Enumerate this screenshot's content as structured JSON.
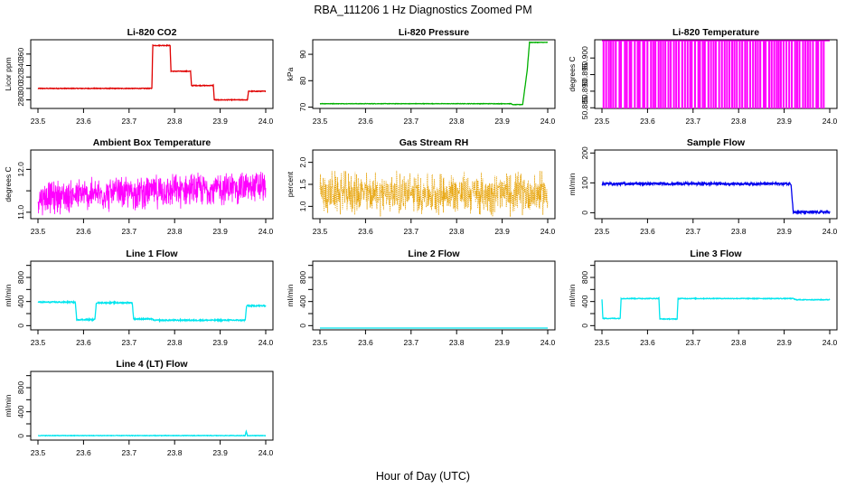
{
  "title": "RBA_111206  1 Hz Diagnostics Zoomed PM",
  "xlabel": "Hour of Day (UTC)",
  "chart_data": [
    {
      "type": "line",
      "title": "Li-820 CO2",
      "ylabel": "Licor ppm",
      "color": "#e00000",
      "xlim": [
        23.5,
        24.0
      ],
      "ylim": [
        265,
        385
      ],
      "x_ticks": [
        "23.5",
        "23.6",
        "23.7",
        "23.8",
        "23.9",
        "24.0"
      ],
      "y_ticks": [
        280,
        300,
        320,
        340,
        360
      ],
      "y_tick_labels": [
        "280",
        "300",
        "320",
        "340",
        "360"
      ],
      "noise": 0.6,
      "series": [
        {
          "x": [
            23.5,
            23.75,
            23.752,
            23.79,
            23.792,
            23.835,
            23.837,
            23.885,
            23.887,
            23.96,
            23.962,
            24.0
          ],
          "y": [
            300,
            300,
            375,
            375,
            330,
            330,
            305,
            305,
            280,
            280,
            295,
            295
          ]
        }
      ]
    },
    {
      "type": "line",
      "title": "Li-820 Pressure",
      "ylabel": "kPa",
      "color": "#00b000",
      "xlim": [
        23.5,
        24.0
      ],
      "ylim": [
        69.5,
        95.5
      ],
      "x_ticks": [
        "23.5",
        "23.6",
        "23.7",
        "23.8",
        "23.9",
        "24.0"
      ],
      "y_ticks": [
        70,
        80,
        90
      ],
      "y_tick_labels": [
        "70",
        "80",
        "90"
      ],
      "noise": 0.08,
      "series": [
        {
          "x": [
            23.5,
            23.92,
            23.923,
            23.945,
            23.955,
            23.96,
            23.963,
            24.0
          ],
          "y": [
            71.3,
            71.3,
            70.9,
            71.0,
            84,
            94.5,
            94.5,
            94.5
          ]
        }
      ]
    },
    {
      "type": "line",
      "title": "Li-820 Temperature",
      "ylabel": "degrees C",
      "color": "#ff00ff",
      "xlim": [
        23.5,
        24.0
      ],
      "ylim": [
        50.8848,
        50.9055
      ],
      "x_ticks": [
        "23.5",
        "23.6",
        "23.7",
        "23.8",
        "23.9",
        "24.0"
      ],
      "y_ticks": [
        50.885,
        50.89,
        50.895,
        50.9
      ],
      "y_tick_labels": [
        "50.885",
        "50.890",
        "50.895",
        "50.900"
      ],
      "pattern": "spikes",
      "baseline": 50.9052,
      "low": 50.885,
      "spike_count": 85,
      "spike_end": 23.99
    },
    {
      "type": "line",
      "title": "Ambient Box Temperature",
      "ylabel": "degrees C",
      "color": "#ff00ff",
      "xlim": [
        23.5,
        24.0
      ],
      "ylim": [
        10.85,
        12.45
      ],
      "x_ticks": [
        "23.5",
        "23.6",
        "23.7",
        "23.8",
        "23.9",
        "24.0"
      ],
      "y_ticks": [
        11.0,
        11.5,
        12.0
      ],
      "y_tick_labels": [
        "11.0",
        "",
        "12.0"
      ],
      "pattern": "noise",
      "mean": [
        11.35,
        11.6
      ],
      "amp": 0.45
    },
    {
      "type": "line",
      "title": "Gas Stream RH",
      "ylabel": "percent",
      "color": "#e6a000",
      "xlim": [
        23.5,
        24.0
      ],
      "ylim": [
        0.72,
        2.28
      ],
      "x_ticks": [
        "23.5",
        "23.6",
        "23.7",
        "23.8",
        "23.9",
        "24.0"
      ],
      "y_ticks": [
        1.0,
        1.5,
        2.0
      ],
      "y_tick_labels": [
        "1.0",
        "1.5",
        "2.0"
      ],
      "pattern": "noise",
      "mean": [
        1.3,
        1.3
      ],
      "amp": 0.55,
      "dotted": true
    },
    {
      "type": "line",
      "title": "Sample Flow",
      "ylabel": "ml/min",
      "color": "#0000ee",
      "xlim": [
        23.5,
        24.0
      ],
      "ylim": [
        -20,
        210
      ],
      "x_ticks": [
        "23.5",
        "23.6",
        "23.7",
        "23.8",
        "23.9",
        "24.0"
      ],
      "y_ticks": [
        0,
        100,
        200
      ],
      "y_tick_labels": [
        "0",
        "100",
        "200"
      ],
      "noise": 4,
      "series": [
        {
          "x": [
            23.5,
            23.915,
            23.92,
            24.0
          ],
          "y": [
            97,
            97,
            2,
            2
          ]
        }
      ]
    },
    {
      "type": "line",
      "title": "Line 1 Flow",
      "ylabel": "ml/min",
      "color": "#00e5ee",
      "xlim": [
        23.5,
        24.0
      ],
      "ylim": [
        -70,
        1070
      ],
      "x_ticks": [
        "23.5",
        "23.6",
        "23.7",
        "23.8",
        "23.9",
        "24.0"
      ],
      "y_ticks": [
        0,
        200,
        400,
        600,
        800,
        1000
      ],
      "y_tick_labels": [
        "0",
        "",
        "400",
        "",
        "800",
        ""
      ],
      "noise": 10,
      "series": [
        {
          "x": [
            23.5,
            23.582,
            23.585,
            23.625,
            23.628,
            23.707,
            23.71,
            23.75,
            23.755,
            23.955,
            23.958,
            24.0
          ],
          "y": [
            390,
            390,
            100,
            100,
            380,
            380,
            110,
            110,
            90,
            90,
            330,
            330
          ]
        }
      ]
    },
    {
      "type": "line",
      "title": "Line 2 Flow",
      "ylabel": "ml/min",
      "color": "#00e5ee",
      "xlim": [
        23.5,
        24.0
      ],
      "ylim": [
        -70,
        1070
      ],
      "x_ticks": [
        "23.5",
        "23.6",
        "23.7",
        "23.8",
        "23.9",
        "24.0"
      ],
      "y_ticks": [
        0,
        200,
        400,
        600,
        800,
        1000
      ],
      "y_tick_labels": [
        "0",
        "",
        "400",
        "",
        "800",
        ""
      ],
      "noise": 0,
      "series": [
        {
          "x": [
            23.5,
            24.0
          ],
          "y": [
            -40,
            -40
          ]
        }
      ]
    },
    {
      "type": "line",
      "title": "Line 3 Flow",
      "ylabel": "ml/min",
      "color": "#00e5ee",
      "xlim": [
        23.5,
        24.0
      ],
      "ylim": [
        -70,
        1070
      ],
      "x_ticks": [
        "23.5",
        "23.6",
        "23.7",
        "23.8",
        "23.9",
        "24.0"
      ],
      "y_ticks": [
        0,
        200,
        400,
        600,
        800,
        1000
      ],
      "y_tick_labels": [
        "0",
        "",
        "400",
        "",
        "800",
        ""
      ],
      "noise": 6,
      "series": [
        {
          "x": [
            23.5,
            23.502,
            23.54,
            23.542,
            23.625,
            23.627,
            23.665,
            23.667,
            23.92,
            23.925,
            24.0
          ],
          "y": [
            440,
            120,
            120,
            450,
            450,
            110,
            110,
            450,
            450,
            430,
            430
          ]
        }
      ]
    },
    {
      "type": "line",
      "title": "Line 4 (LT) Flow",
      "ylabel": "ml/min",
      "color": "#00e5ee",
      "xlim": [
        23.5,
        24.0
      ],
      "ylim": [
        -70,
        1070
      ],
      "x_ticks": [
        "23.5",
        "23.6",
        "23.7",
        "23.8",
        "23.9",
        "24.0"
      ],
      "y_ticks": [
        0,
        200,
        400,
        600,
        800,
        1000
      ],
      "y_tick_labels": [
        "0",
        "",
        "400",
        "",
        "800",
        ""
      ],
      "noise": 4,
      "series": [
        {
          "x": [
            23.5,
            23.955,
            23.957,
            23.96,
            23.962,
            24.0
          ],
          "y": [
            5,
            5,
            80,
            5,
            5,
            5
          ]
        }
      ]
    }
  ]
}
